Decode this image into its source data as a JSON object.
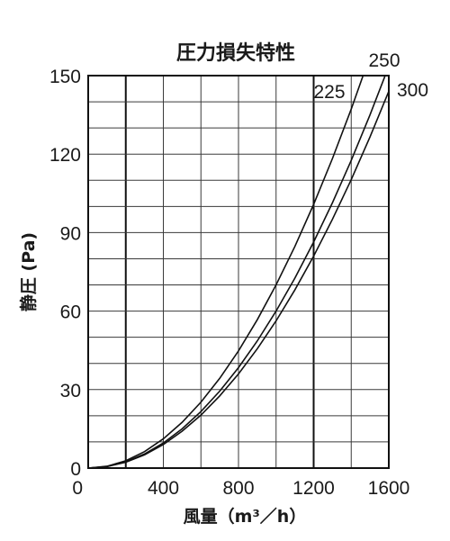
{
  "chart_data": {
    "type": "line",
    "title": "圧力損失特性",
    "xlabel": "風量（m³／h）",
    "ylabel": "静圧 (Pa)",
    "xlim": [
      0,
      1600
    ],
    "ylim": [
      0,
      150
    ],
    "x_ticks": [
      "0",
      "400",
      "800",
      "1200",
      "1600"
    ],
    "y_ticks": [
      "0",
      "30",
      "60",
      "90",
      "120",
      "150"
    ],
    "x_tick_values": [
      0,
      400,
      800,
      1200,
      1600
    ],
    "y_tick_values": [
      0,
      30,
      60,
      90,
      120,
      150
    ],
    "x_minor_step": 200,
    "y_minor_step": 10,
    "x_major_lines": [
      200,
      1200
    ],
    "grid": true,
    "x": [
      0,
      100,
      200,
      300,
      400,
      500,
      600,
      700,
      800,
      900,
      1000,
      1100,
      1200,
      1300,
      1400,
      1500,
      1600
    ],
    "series": [
      {
        "name": "225",
        "values": [
          0,
          0.7,
          2.8,
          6.3,
          11.2,
          17.5,
          25.2,
          34.3,
          44.8,
          56.7,
          70,
          84.7,
          100.8,
          118.3,
          137.2,
          157.5,
          179.2
        ]
      },
      {
        "name": "250",
        "values": [
          0,
          0.6,
          2.4,
          5.4,
          9.6,
          15,
          21.6,
          29.4,
          38.4,
          48.6,
          60,
          72.6,
          86.4,
          101.4,
          117.6,
          135,
          153.6
        ]
      },
      {
        "name": "300",
        "values": [
          0,
          0.56,
          2.25,
          5.06,
          9,
          14.1,
          20.25,
          27.6,
          36,
          45.6,
          56.25,
          68.1,
          81,
          95.1,
          110.25,
          126.6,
          144
        ]
      }
    ]
  }
}
